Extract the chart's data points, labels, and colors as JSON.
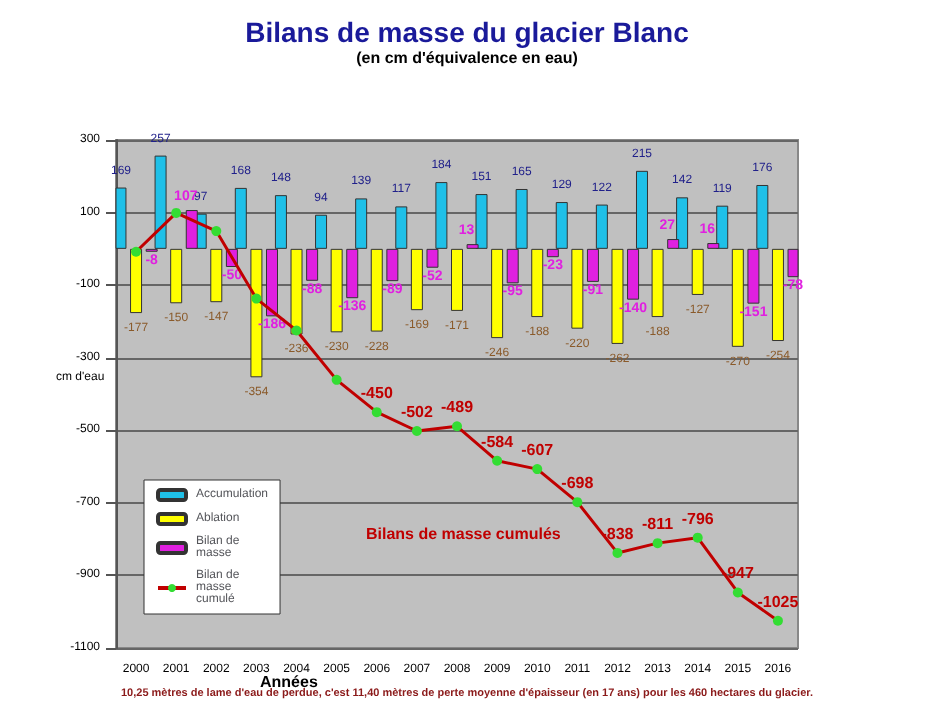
{
  "chart_data": {
    "type": "bar",
    "title": "Bilans de masse du glacier Blanc",
    "subtitle": "(en cm d'équivalence en eau)",
    "xlabel": "Années",
    "ylabel": "cm d'eau",
    "categories": [
      "2000",
      "2001",
      "2002",
      "2003",
      "2004",
      "2005",
      "2006",
      "2007",
      "2008",
      "2009",
      "2010",
      "2011",
      "2012",
      "2013",
      "2014",
      "2015",
      "2016"
    ],
    "series": [
      {
        "name": "Accumulation",
        "color": "#1fc0e8",
        "values": [
          169,
          257,
          97,
          168,
          148,
          94,
          139,
          117,
          184,
          151,
          165,
          129,
          122,
          215,
          142,
          119,
          176
        ]
      },
      {
        "name": "Ablation",
        "color": "#ffff00",
        "values": [
          -177,
          -150,
          -147,
          -354,
          -236,
          -230,
          -228,
          -169,
          -171,
          -246,
          -188,
          -220,
          -262,
          -188,
          -127,
          -270,
          -254
        ]
      },
      {
        "name": "Bilan de masse",
        "color": "#e020e0",
        "values": [
          -8,
          107,
          -50,
          -186,
          -88,
          -136,
          -89,
          -52,
          13,
          -95,
          -23,
          -91,
          -140,
          27,
          16,
          -151,
          -78
        ]
      },
      {
        "name": "Bilan de masse cumulé",
        "type": "line",
        "color": "#c00000",
        "marker": "circle",
        "values": [
          -8,
          99,
          49,
          -137,
          -225,
          -361,
          -450,
          -502,
          -489,
          -584,
          -607,
          -698,
          -838,
          -811,
          -796,
          -947,
          -1025
        ],
        "value_labels": [
          null,
          null,
          null,
          null,
          null,
          null,
          "-450",
          "-502",
          "-489",
          "-584",
          "-607",
          "-698",
          "-838",
          "-811",
          "-796",
          "-947",
          "-1025"
        ]
      }
    ],
    "data_labels": true,
    "ylim": [
      -1100,
      300
    ],
    "yticks": [
      -1100,
      -900,
      -700,
      -500,
      -300,
      -100,
      100,
      300
    ],
    "grid": "y",
    "legend": "bottom left",
    "annotations": [
      "Bilans de masse cumulés",
      "10,25 mètres de lame d'eau de perdue, c'est 11,40 mètres de perte moyenne d'épaisseur (en 17 ans) pour les 460 hectares du glacier."
    ]
  }
}
